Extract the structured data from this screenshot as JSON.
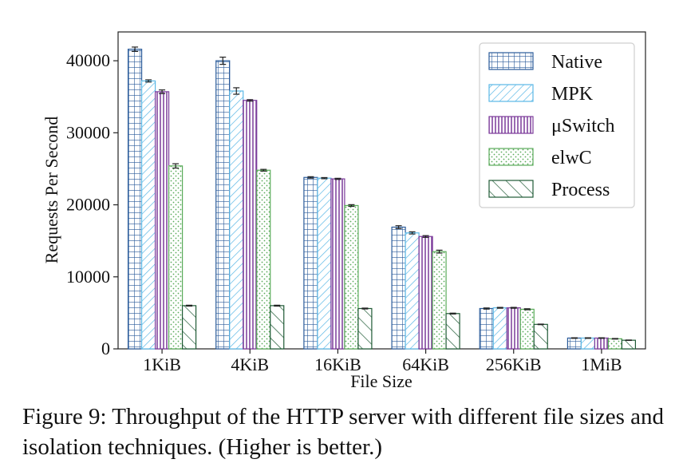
{
  "chart_data": {
    "type": "bar",
    "xlabel": "File Size",
    "ylabel": "Requests Per Second",
    "categories": [
      "1KiB",
      "4KiB",
      "16KiB",
      "64KiB",
      "256KiB",
      "1MiB"
    ],
    "ylim": [
      0,
      44000
    ],
    "yticks": [
      0,
      10000,
      20000,
      30000,
      40000
    ],
    "legend_position": "top-right",
    "grid": false,
    "error_bars": true,
    "series": [
      {
        "name": "Native",
        "color": "#2a5b9a",
        "pattern": "grid",
        "values": [
          41600,
          40000,
          23800,
          16900,
          5600,
          1500
        ],
        "errors": [
          300,
          500,
          100,
          200,
          80,
          40
        ]
      },
      {
        "name": "MPK",
        "color": "#5bb8e6",
        "pattern": "diagonal",
        "values": [
          37200,
          35800,
          23700,
          16100,
          5700,
          1500
        ],
        "errors": [
          150,
          450,
          80,
          150,
          60,
          40
        ]
      },
      {
        "name": "μSwitch",
        "color": "#7b3a9a",
        "pattern": "vertical",
        "values": [
          35700,
          34500,
          23600,
          15600,
          5700,
          1500
        ],
        "errors": [
          250,
          100,
          80,
          120,
          60,
          40
        ]
      },
      {
        "name": "elwC",
        "color": "#5aab5a",
        "pattern": "dots",
        "values": [
          25400,
          24800,
          19900,
          13500,
          5500,
          1400
        ],
        "errors": [
          300,
          120,
          120,
          200,
          70,
          40
        ]
      },
      {
        "name": "Process",
        "color": "#1f5a35",
        "pattern": "backslash",
        "values": [
          6000,
          6000,
          5600,
          4900,
          3400,
          1200
        ],
        "errors": [
          60,
          60,
          60,
          60,
          40,
          30
        ]
      }
    ]
  },
  "caption": "Figure 9: Throughput of the HTTP server with different file sizes and isolation techniques. (Higher is better.)"
}
